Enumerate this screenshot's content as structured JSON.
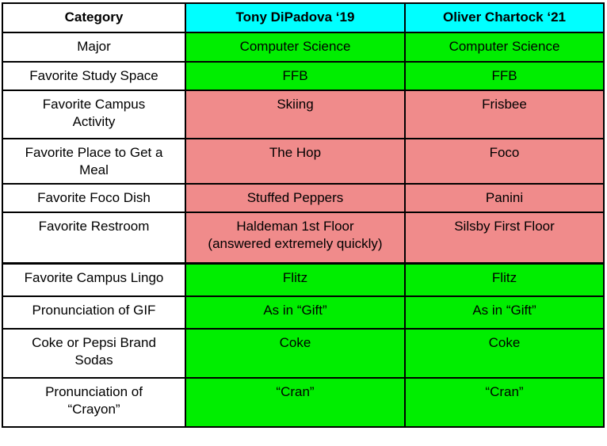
{
  "colors": {
    "page_bg": "#FFFFFF",
    "border": "#000000",
    "text": "#000000",
    "category_bg": "#FFFFFF",
    "header_bg": "#00FFFF",
    "match_bg": "#00EE00",
    "differ_bg": "#F08B8B"
  },
  "table": {
    "headers": {
      "category": "Category",
      "tony": "Tony DiPadova ‘19",
      "oliver": "Oliver Chartock ‘21"
    },
    "rows": [
      {
        "category": "Major",
        "tony": "Computer Science",
        "oliver": "Computer Science",
        "status": "match"
      },
      {
        "category": "Favorite Study Space",
        "tony": "FFB",
        "oliver": "FFB",
        "status": "match"
      },
      {
        "category": "Favorite Campus\nActivity",
        "tony": "Skiing",
        "oliver": "Frisbee",
        "status": "differ"
      },
      {
        "category": "Favorite Place to Get a\nMeal",
        "tony": "The Hop",
        "oliver": "Foco",
        "status": "differ"
      },
      {
        "category": "Favorite Foco Dish",
        "tony": "Stuffed Peppers",
        "oliver": "Panini",
        "status": "differ"
      },
      {
        "category": "Favorite Restroom",
        "tony": "Haldeman 1st Floor\n(answered extremely quickly)",
        "oliver": "Silsby First Floor",
        "status": "differ"
      },
      {
        "category": "Favorite Campus Lingo",
        "tony": "Flitz",
        "oliver": "Flitz",
        "status": "match"
      },
      {
        "category": "Pronunciation of GIF",
        "tony": "As in “Gift”",
        "oliver": "As in “Gift”",
        "status": "match"
      },
      {
        "category": "Coke or Pepsi Brand\nSodas",
        "tony": "Coke",
        "oliver": "Coke",
        "status": "match"
      },
      {
        "category": "Pronunciation of\n“Crayon”",
        "tony": "“Cran”",
        "oliver": "“Cran”",
        "status": "match"
      }
    ]
  }
}
